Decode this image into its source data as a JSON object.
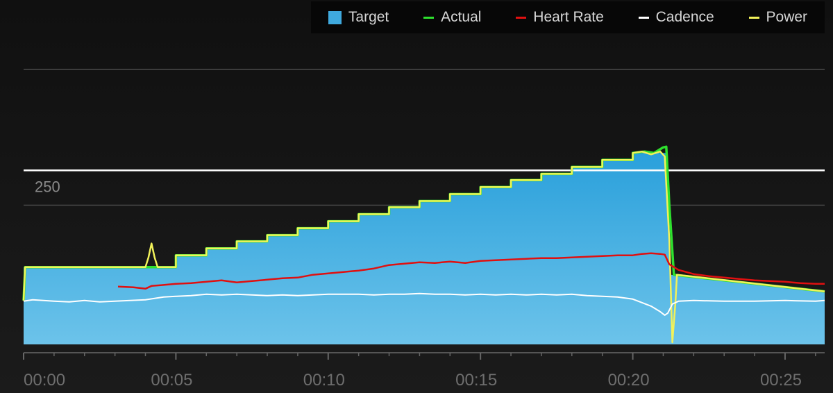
{
  "chart_data": {
    "type": "area",
    "x_unit": "minutes",
    "xlim": [
      0,
      26.3
    ],
    "ylim": [
      0,
      395
    ],
    "y_ticks": [
      {
        "value": 250,
        "label": "250"
      }
    ],
    "gridlines": [
      200,
      395
    ],
    "cadence_reference": 250,
    "x_ticks": [
      {
        "value": 0,
        "label": "00:00"
      },
      {
        "value": 5,
        "label": "00:05"
      },
      {
        "value": 10,
        "label": "00:10"
      },
      {
        "value": 15,
        "label": "00:15"
      },
      {
        "value": 20,
        "label": "00:20"
      },
      {
        "value": 25,
        "label": "00:25"
      }
    ],
    "legend": [
      {
        "key": "target",
        "label": "Target",
        "color": "#3fa9de",
        "style": "box"
      },
      {
        "key": "actual",
        "label": "Actual",
        "color": "#2ee02e",
        "style": "line"
      },
      {
        "key": "heart_rate",
        "label": "Heart Rate",
        "color": "#e01010",
        "style": "line"
      },
      {
        "key": "cadence",
        "label": "Cadence",
        "color": "#ffffff",
        "style": "line"
      },
      {
        "key": "power",
        "label": "Power",
        "color": "#f2f25a",
        "style": "line"
      }
    ],
    "series": [
      {
        "key": "target",
        "color": "#3fa9de",
        "points": [
          [
            0,
            111
          ],
          [
            5,
            111
          ],
          [
            5,
            128
          ],
          [
            6,
            128
          ],
          [
            6,
            138
          ],
          [
            7,
            138
          ],
          [
            7,
            148
          ],
          [
            8,
            148
          ],
          [
            8,
            157
          ],
          [
            9,
            157
          ],
          [
            9,
            167
          ],
          [
            10,
            167
          ],
          [
            10,
            177
          ],
          [
            11,
            177
          ],
          [
            11,
            187
          ],
          [
            12,
            187
          ],
          [
            12,
            197
          ],
          [
            13,
            197
          ],
          [
            13,
            206
          ],
          [
            14,
            206
          ],
          [
            14,
            216
          ],
          [
            15,
            216
          ],
          [
            15,
            226
          ],
          [
            16,
            226
          ],
          [
            16,
            236
          ],
          [
            17,
            236
          ],
          [
            17,
            245
          ],
          [
            18,
            245
          ],
          [
            18,
            255
          ],
          [
            19,
            255
          ],
          [
            19,
            265
          ],
          [
            20,
            265
          ],
          [
            20,
            275
          ],
          [
            21,
            275
          ],
          [
            21.15,
            275
          ],
          [
            21.25,
            100
          ],
          [
            26.3,
            76
          ]
        ]
      },
      {
        "key": "actual",
        "color": "#2ee02e",
        "points": [
          [
            0,
            63
          ],
          [
            0.05,
            111
          ],
          [
            5,
            111
          ],
          [
            5,
            128
          ],
          [
            6,
            128
          ],
          [
            6,
            138
          ],
          [
            7,
            138
          ],
          [
            7,
            148
          ],
          [
            8,
            148
          ],
          [
            8,
            157
          ],
          [
            9,
            157
          ],
          [
            9,
            167
          ],
          [
            10,
            167
          ],
          [
            10,
            177
          ],
          [
            11,
            177
          ],
          [
            11,
            187
          ],
          [
            12,
            187
          ],
          [
            12,
            197
          ],
          [
            13,
            197
          ],
          [
            13,
            206
          ],
          [
            14,
            206
          ],
          [
            14,
            216
          ],
          [
            15,
            216
          ],
          [
            15,
            226
          ],
          [
            16,
            226
          ],
          [
            16,
            236
          ],
          [
            17,
            236
          ],
          [
            17,
            245
          ],
          [
            18,
            245
          ],
          [
            18,
            255
          ],
          [
            19,
            255
          ],
          [
            19,
            265
          ],
          [
            20,
            265
          ],
          [
            20,
            275
          ],
          [
            20.4,
            277
          ],
          [
            20.7,
            275
          ],
          [
            21.0,
            283
          ],
          [
            21.1,
            284
          ],
          [
            21.2,
            200
          ],
          [
            21.35,
            100
          ],
          [
            26.3,
            76
          ]
        ]
      },
      {
        "key": "power",
        "color": "#f2f25a",
        "points": [
          [
            0,
            63
          ],
          [
            0.05,
            111
          ],
          [
            4.0,
            111
          ],
          [
            4.1,
            125
          ],
          [
            4.2,
            145
          ],
          [
            4.3,
            125
          ],
          [
            4.4,
            111
          ],
          [
            5,
            111
          ],
          [
            5,
            128
          ],
          [
            6,
            128
          ],
          [
            6,
            138
          ],
          [
            7,
            138
          ],
          [
            7,
            148
          ],
          [
            8,
            148
          ],
          [
            8,
            157
          ],
          [
            9,
            157
          ],
          [
            9,
            167
          ],
          [
            10,
            167
          ],
          [
            10,
            177
          ],
          [
            11,
            177
          ],
          [
            11,
            187
          ],
          [
            12,
            187
          ],
          [
            12,
            197
          ],
          [
            13,
            197
          ],
          [
            13,
            206
          ],
          [
            14,
            206
          ],
          [
            14,
            216
          ],
          [
            15,
            216
          ],
          [
            15,
            226
          ],
          [
            16,
            226
          ],
          [
            16,
            236
          ],
          [
            17,
            236
          ],
          [
            17,
            245
          ],
          [
            18,
            245
          ],
          [
            18,
            255
          ],
          [
            19,
            255
          ],
          [
            19,
            265
          ],
          [
            20,
            265
          ],
          [
            20,
            275
          ],
          [
            20.3,
            277
          ],
          [
            20.6,
            273
          ],
          [
            20.9,
            277
          ],
          [
            21.05,
            270
          ],
          [
            21.2,
            150
          ],
          [
            21.3,
            3
          ],
          [
            21.4,
            60
          ],
          [
            21.45,
            100
          ],
          [
            26.3,
            76
          ]
        ]
      },
      {
        "key": "heart_rate",
        "color": "#e01010",
        "points": [
          [
            3.1,
            83
          ],
          [
            3.6,
            82
          ],
          [
            4.0,
            80
          ],
          [
            4.2,
            84
          ],
          [
            4.5,
            85
          ],
          [
            5,
            87
          ],
          [
            5.5,
            88
          ],
          [
            6,
            90
          ],
          [
            6.5,
            92
          ],
          [
            7,
            89
          ],
          [
            7.5,
            91
          ],
          [
            8,
            93
          ],
          [
            8.5,
            95
          ],
          [
            9,
            96
          ],
          [
            9.5,
            100
          ],
          [
            10,
            102
          ],
          [
            10.5,
            104
          ],
          [
            11,
            106
          ],
          [
            11.5,
            109
          ],
          [
            12,
            114
          ],
          [
            12.5,
            116
          ],
          [
            13,
            118
          ],
          [
            13.5,
            117
          ],
          [
            14,
            119
          ],
          [
            14.5,
            117
          ],
          [
            15,
            120
          ],
          [
            15.5,
            121
          ],
          [
            16,
            122
          ],
          [
            16.5,
            123
          ],
          [
            17,
            124
          ],
          [
            17.5,
            124
          ],
          [
            18,
            125
          ],
          [
            18.5,
            126
          ],
          [
            19,
            127
          ],
          [
            19.5,
            128
          ],
          [
            20,
            128
          ],
          [
            20.3,
            130
          ],
          [
            20.6,
            131
          ],
          [
            20.9,
            130
          ],
          [
            21.05,
            129
          ],
          [
            21.2,
            115
          ],
          [
            21.5,
            107
          ],
          [
            22,
            101
          ],
          [
            22.5,
            98
          ],
          [
            23,
            96
          ],
          [
            23.5,
            94
          ],
          [
            24,
            92
          ],
          [
            24.5,
            91
          ],
          [
            25,
            90
          ],
          [
            25.5,
            88
          ],
          [
            26,
            87
          ],
          [
            26.3,
            87
          ]
        ]
      },
      {
        "key": "cadence",
        "color": "#ffffff",
        "points": [
          [
            0,
            62
          ],
          [
            0.3,
            64
          ],
          [
            1,
            62
          ],
          [
            1.5,
            61
          ],
          [
            2,
            63
          ],
          [
            2.5,
            61
          ],
          [
            3,
            62
          ],
          [
            3.5,
            63
          ],
          [
            4,
            64
          ],
          [
            4.3,
            66
          ],
          [
            4.6,
            68
          ],
          [
            5,
            69
          ],
          [
            5.5,
            70
          ],
          [
            6,
            72
          ],
          [
            6.5,
            71
          ],
          [
            7,
            72
          ],
          [
            7.5,
            71
          ],
          [
            8,
            70
          ],
          [
            8.5,
            71
          ],
          [
            9,
            70
          ],
          [
            9.5,
            71
          ],
          [
            10,
            72
          ],
          [
            10.5,
            72
          ],
          [
            11,
            72
          ],
          [
            11.5,
            71
          ],
          [
            12,
            72
          ],
          [
            12.5,
            72
          ],
          [
            13,
            73
          ],
          [
            13.5,
            72
          ],
          [
            14,
            72
          ],
          [
            14.5,
            71
          ],
          [
            15,
            72
          ],
          [
            15.5,
            71
          ],
          [
            16,
            72
          ],
          [
            16.5,
            71
          ],
          [
            17,
            72
          ],
          [
            17.5,
            71
          ],
          [
            18,
            72
          ],
          [
            18.5,
            70
          ],
          [
            19,
            69
          ],
          [
            19.5,
            68
          ],
          [
            20,
            65
          ],
          [
            20.3,
            60
          ],
          [
            20.6,
            55
          ],
          [
            20.9,
            47
          ],
          [
            21.05,
            42
          ],
          [
            21.15,
            45
          ],
          [
            21.3,
            58
          ],
          [
            21.5,
            62
          ],
          [
            22,
            63
          ],
          [
            23,
            62
          ],
          [
            24,
            62
          ],
          [
            25,
            63
          ],
          [
            26,
            62
          ],
          [
            26.3,
            63
          ]
        ]
      }
    ]
  }
}
